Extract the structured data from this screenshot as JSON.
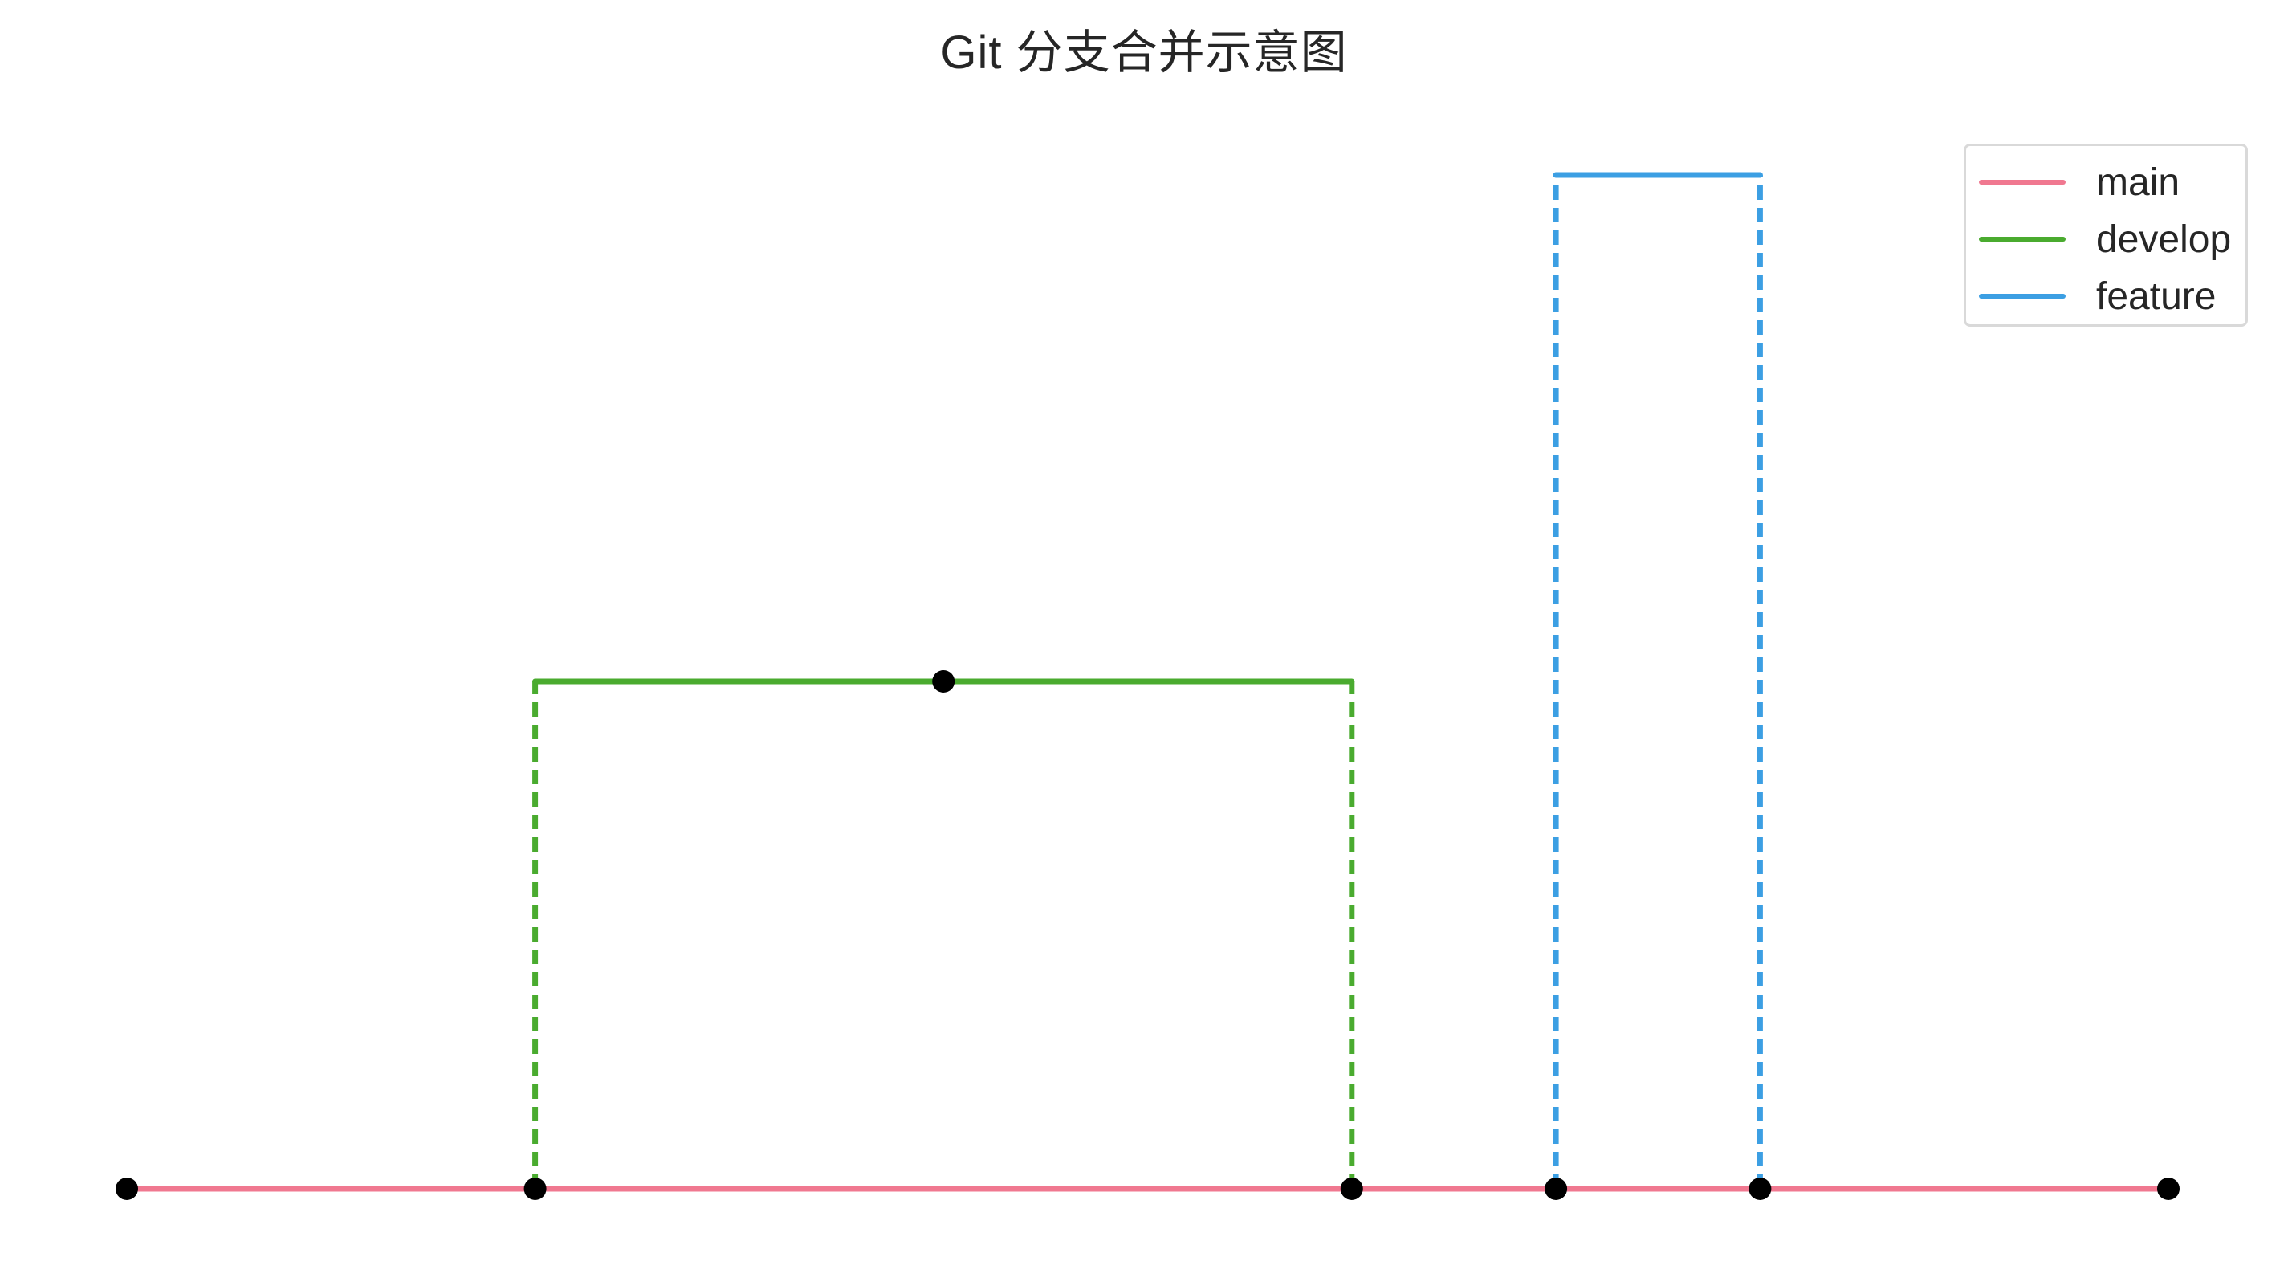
{
  "title": "Git 分支合并示意图",
  "legend": {
    "position": "top-right",
    "items": [
      {
        "label": "main",
        "color": "#f07890"
      },
      {
        "label": "develop",
        "color": "#4aab2f"
      },
      {
        "label": "feature",
        "color": "#3c9fe3"
      }
    ]
  },
  "branches": {
    "main": {
      "color": "#f07890",
      "commits": [
        0,
        1,
        3,
        3.5,
        4,
        5
      ]
    },
    "develop": {
      "color": "#4aab2f",
      "branch_from": 1,
      "merge_into": 3,
      "commits": [
        2
      ]
    },
    "feature": {
      "color": "#3c9fe3",
      "branch_from": 3.5,
      "merge_into": 4,
      "commits": []
    }
  },
  "commit_color": "#000000"
}
